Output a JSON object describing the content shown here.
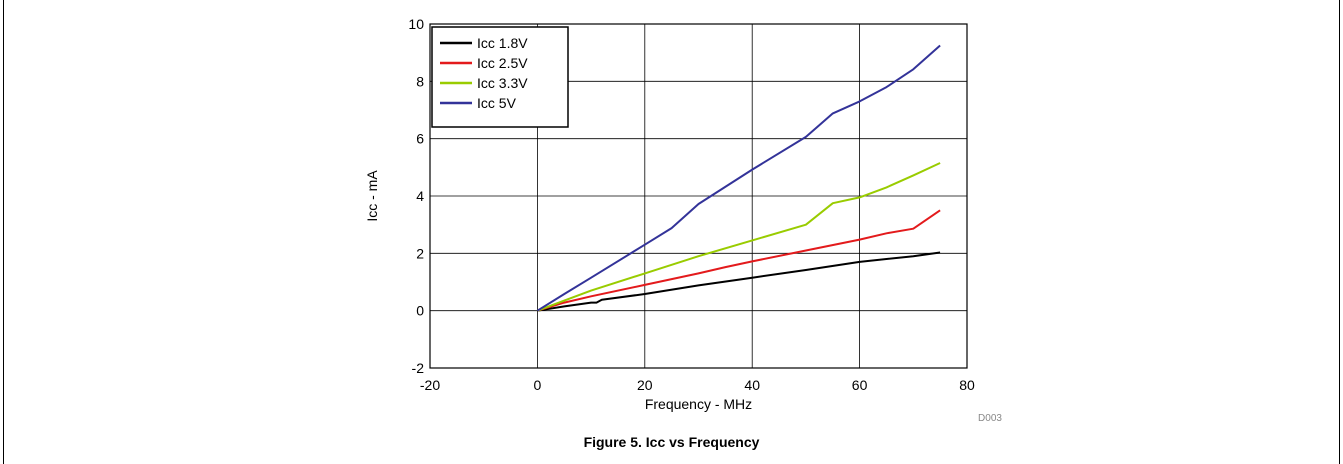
{
  "caption": "Figure 5. Icc vs Frequency",
  "figure_id": "D003",
  "colors": {
    "Icc 1.8V": "#000000",
    "Icc 2.5V": "#e31a1c",
    "Icc 3.3V": "#99cc00",
    "Icc 5V": "#333399"
  },
  "chart_data": {
    "type": "line",
    "title": "",
    "xlabel": "Frequency - MHz",
    "ylabel": "Icc - mA",
    "xlim": [
      -20,
      80
    ],
    "ylim": [
      -2,
      10
    ],
    "xticks": [
      -20,
      0,
      20,
      40,
      60,
      80
    ],
    "yticks": [
      -2,
      0,
      2,
      4,
      6,
      8,
      10
    ],
    "grid": true,
    "legend_position": "top-left",
    "series": [
      {
        "name": "Icc 1.8V",
        "x": [
          0,
          5,
          10,
          11,
          12,
          20,
          30,
          40,
          50,
          60,
          70,
          75
        ],
        "y": [
          0,
          0.15,
          0.28,
          0.28,
          0.38,
          0.58,
          0.88,
          1.15,
          1.42,
          1.7,
          1.9,
          2.03
        ]
      },
      {
        "name": "Icc 2.5V",
        "x": [
          0,
          5,
          10,
          20,
          30,
          35,
          40,
          50,
          60,
          65,
          70,
          75
        ],
        "y": [
          0,
          0.28,
          0.5,
          0.9,
          1.3,
          1.52,
          1.72,
          2.1,
          2.48,
          2.7,
          2.86,
          3.5
        ]
      },
      {
        "name": "Icc 3.3V",
        "x": [
          0,
          5,
          10,
          20,
          30,
          40,
          50,
          55,
          60,
          65,
          70,
          75
        ],
        "y": [
          0,
          0.35,
          0.7,
          1.3,
          1.9,
          2.45,
          3.0,
          3.75,
          3.95,
          4.3,
          4.72,
          5.15
        ]
      },
      {
        "name": "Icc 5V",
        "x": [
          0,
          5,
          10,
          20,
          25,
          30,
          40,
          50,
          55,
          60,
          65,
          70,
          75
        ],
        "y": [
          0,
          0.58,
          1.15,
          2.3,
          2.88,
          3.72,
          4.92,
          6.06,
          6.88,
          7.3,
          7.8,
          8.42,
          9.25
        ]
      }
    ]
  }
}
